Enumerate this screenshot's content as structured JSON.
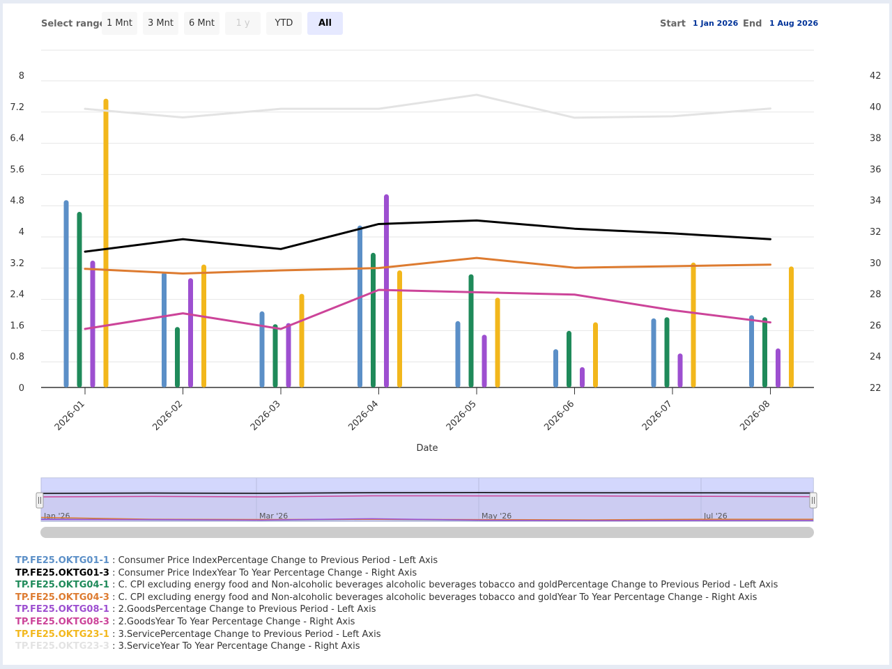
{
  "range_selector": {
    "label": "Select range",
    "buttons": [
      {
        "label": "1 Mnt",
        "state": "normal"
      },
      {
        "label": "3 Mnt",
        "state": "normal"
      },
      {
        "label": "6 Mnt",
        "state": "normal"
      },
      {
        "label": "1 y",
        "state": "disabled"
      },
      {
        "label": "YTD",
        "state": "normal"
      },
      {
        "label": "All",
        "state": "active"
      }
    ],
    "start_label": "Start",
    "start_value": "1 Jan 2026",
    "end_label": "End",
    "end_value": "1 Aug 2026"
  },
  "navigator": {
    "labels": [
      "Jan '26",
      "Mar '26",
      "May '26",
      "Jul '26"
    ]
  },
  "chart_data": {
    "type": "bar",
    "xlabel": "Date",
    "categories": [
      "2026-01",
      "2026-02",
      "2026-03",
      "2026-04",
      "2026-05",
      "2026-06",
      "2026-07",
      "2026-08"
    ],
    "y_left": {
      "min": 0,
      "max": 8,
      "ticks": [
        "0",
        "0.8",
        "1.6",
        "2.4",
        "3.2",
        "4",
        "4.8",
        "5.6",
        "6.4",
        "7.2",
        "8"
      ]
    },
    "y_right": {
      "min": 22,
      "max": 42,
      "ticks": [
        "22",
        "24",
        "26",
        "28",
        "30",
        "32",
        "34",
        "36",
        "38",
        "40",
        "42"
      ]
    },
    "grid": true,
    "legend_position": "bottom",
    "series": [
      {
        "name": "TP.FE25.OKTG01-1",
        "type": "column",
        "axis": "left",
        "color": "#5b8fc7",
        "values": [
          4.8,
          2.95,
          1.95,
          4.15,
          1.7,
          0.98,
          1.77,
          1.85
        ]
      },
      {
        "name": "TP.FE25.OKTG01-3",
        "type": "line",
        "axis": "right",
        "color": "#000000",
        "values": [
          30.7,
          31.5,
          30.87,
          32.47,
          32.7,
          32.17,
          31.87,
          31.5
        ]
      },
      {
        "name": "TP.FE25.OKTG04-1",
        "type": "column",
        "axis": "left",
        "color": "#1f8a5a",
        "values": [
          4.5,
          1.55,
          1.62,
          3.45,
          2.9,
          1.45,
          1.8,
          1.8
        ]
      },
      {
        "name": "TP.FE25.OKTG04-3",
        "type": "line",
        "axis": "right",
        "color": "#dd7b30",
        "values": [
          29.6,
          29.3,
          29.5,
          29.65,
          30.3,
          29.67,
          29.77,
          29.87
        ]
      },
      {
        "name": "TP.FE25.OKTG08-1",
        "type": "column",
        "axis": "left",
        "color": "#9d4fd0",
        "values": [
          3.25,
          2.8,
          1.65,
          4.95,
          1.35,
          0.52,
          0.87,
          1.0
        ]
      },
      {
        "name": "TP.FE25.OKTG08-3",
        "type": "line",
        "axis": "right",
        "color": "#cc4499",
        "values": [
          25.75,
          26.75,
          25.75,
          28.25,
          28.1,
          27.95,
          26.95,
          26.17
        ]
      },
      {
        "name": "TP.FE25.OKTG23-1",
        "type": "column",
        "axis": "left",
        "color": "#f2b71c",
        "values": [
          7.4,
          3.15,
          2.4,
          3.0,
          2.3,
          1.67,
          3.2,
          3.1
        ]
      },
      {
        "name": "TP.FE25.OKTG23-3",
        "type": "line",
        "axis": "right",
        "color": "#e3e3e3",
        "values": [
          39.85,
          39.3,
          39.85,
          39.85,
          40.75,
          39.28,
          39.37,
          39.87
        ]
      }
    ]
  },
  "legend": [
    {
      "code": "TP.FE25.OKTG01-1",
      "color": "#5b8fc7",
      "desc": ": Consumer Price IndexPercentage Change to Previous Period - Left Axis"
    },
    {
      "code": "TP.FE25.OKTG01-3",
      "color": "#000000",
      "desc": ": Consumer Price IndexYear To Year Percentage Change - Right Axis"
    },
    {
      "code": "TP.FE25.OKTG04-1",
      "color": "#1f8a5a",
      "desc": ": C. CPI excluding energy food and Non-alcoholic beverages alcoholic beverages tobacco and goldPercentage Change to Previous Period - Left Axis"
    },
    {
      "code": "TP.FE25.OKTG04-3",
      "color": "#dd7b30",
      "desc": ": C. CPI excluding energy food and Non-alcoholic beverages alcoholic beverages tobacco and goldYear To Year Percentage Change - Right Axis"
    },
    {
      "code": "TP.FE25.OKTG08-1",
      "color": "#9d4fd0",
      "desc": ": 2.GoodsPercentage Change to Previous Period - Left Axis"
    },
    {
      "code": "TP.FE25.OKTG08-3",
      "color": "#cc4499",
      "desc": ": 2.GoodsYear To Year Percentage Change - Right Axis"
    },
    {
      "code": "TP.FE25.OKTG23-1",
      "color": "#f2b71c",
      "desc": ": 3.ServicePercentage Change to Previous Period - Left Axis"
    },
    {
      "code": "TP.FE25.OKTG23-3",
      "color": "#e3e3e3",
      "desc": ": 3.ServiceYear To Year Percentage Change - Right Axis"
    }
  ]
}
